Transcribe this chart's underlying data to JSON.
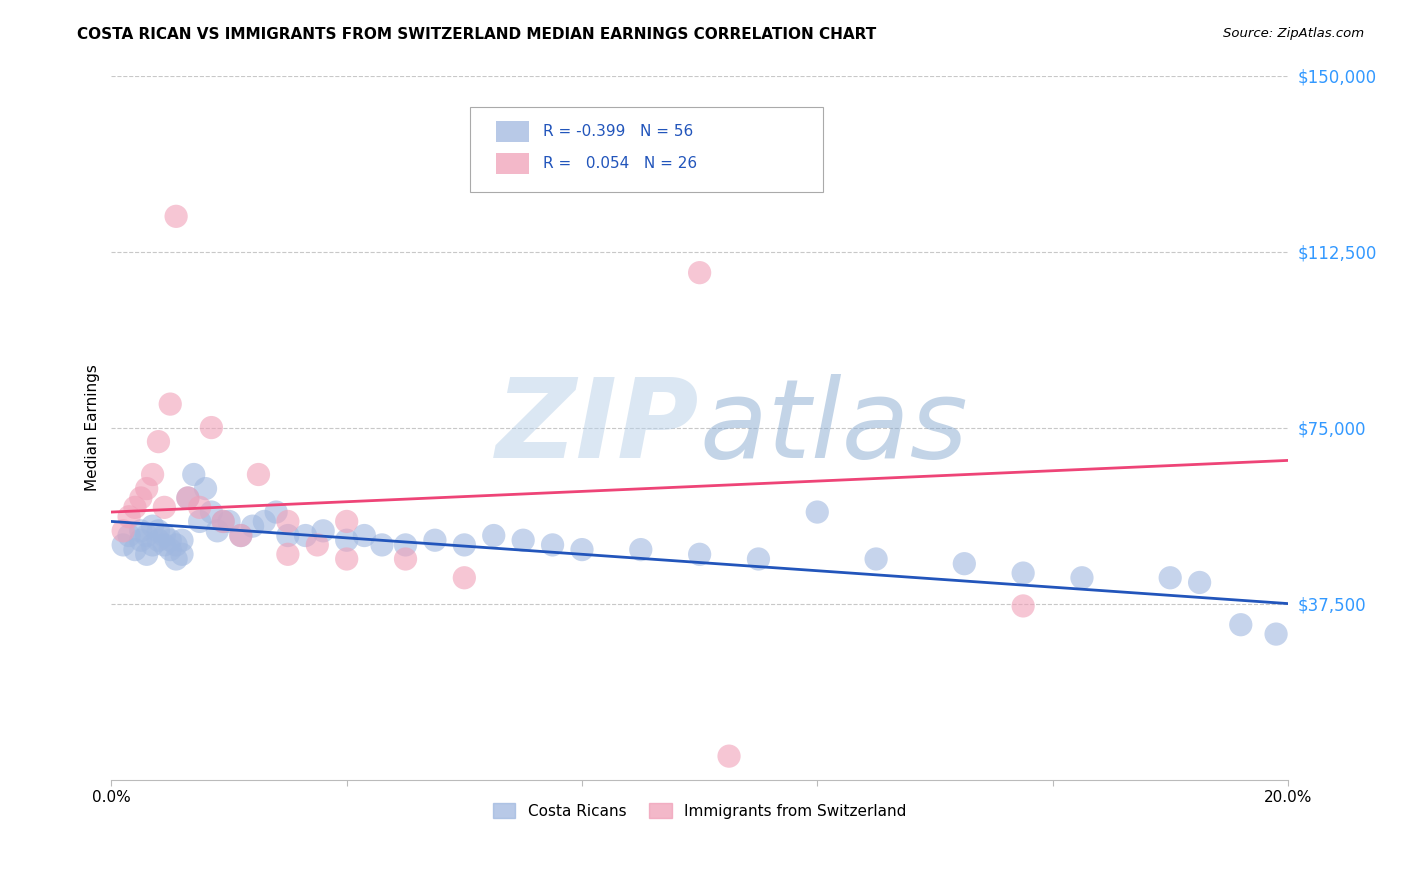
{
  "title": "COSTA RICAN VS IMMIGRANTS FROM SWITZERLAND MEDIAN EARNINGS CORRELATION CHART",
  "source": "Source: ZipAtlas.com",
  "ylabel": "Median Earnings",
  "xlim": [
    0,
    0.2
  ],
  "ylim": [
    0,
    150000
  ],
  "yticks": [
    37500,
    75000,
    112500,
    150000
  ],
  "ytick_labels": [
    "$37,500",
    "$75,000",
    "$112,500",
    "$150,000"
  ],
  "xticks": [
    0.0,
    0.04,
    0.08,
    0.12,
    0.16,
    0.2
  ],
  "xtick_labels": [
    "0.0%",
    "",
    "",
    "",
    "",
    "20.0%"
  ],
  "background_color": "#ffffff",
  "grid_color": "#c8c8c8",
  "watermark_zip": "ZIP",
  "watermark_atlas": "atlas",
  "blue_color": "#a0b8e0",
  "pink_color": "#f0a0b8",
  "blue_line_color": "#2255bb",
  "pink_line_color": "#ee4477",
  "legend_blue_R": "-0.399",
  "legend_blue_N": "56",
  "legend_pink_R": " 0.054",
  "legend_pink_N": "26",
  "blue_scatter_x": [
    0.002,
    0.003,
    0.004,
    0.005,
    0.005,
    0.006,
    0.006,
    0.007,
    0.007,
    0.008,
    0.008,
    0.009,
    0.009,
    0.01,
    0.01,
    0.011,
    0.011,
    0.012,
    0.012,
    0.013,
    0.014,
    0.015,
    0.016,
    0.017,
    0.018,
    0.019,
    0.02,
    0.022,
    0.024,
    0.026,
    0.028,
    0.03,
    0.033,
    0.036,
    0.04,
    0.043,
    0.046,
    0.05,
    0.055,
    0.06,
    0.065,
    0.07,
    0.075,
    0.08,
    0.09,
    0.1,
    0.11,
    0.12,
    0.13,
    0.145,
    0.155,
    0.165,
    0.18,
    0.185,
    0.192,
    0.198
  ],
  "blue_scatter_y": [
    50000,
    52000,
    49000,
    51000,
    53000,
    48000,
    52000,
    50000,
    54000,
    51000,
    53000,
    50000,
    52000,
    49000,
    51000,
    47000,
    50000,
    48000,
    51000,
    60000,
    65000,
    55000,
    62000,
    57000,
    53000,
    55000,
    55000,
    52000,
    54000,
    55000,
    57000,
    52000,
    52000,
    53000,
    51000,
    52000,
    50000,
    50000,
    51000,
    50000,
    52000,
    51000,
    50000,
    49000,
    49000,
    48000,
    47000,
    57000,
    47000,
    46000,
    44000,
    43000,
    43000,
    42000,
    33000,
    31000
  ],
  "pink_scatter_x": [
    0.002,
    0.003,
    0.004,
    0.005,
    0.006,
    0.007,
    0.008,
    0.009,
    0.01,
    0.011,
    0.013,
    0.015,
    0.017,
    0.019,
    0.022,
    0.025,
    0.03,
    0.035,
    0.04,
    0.05,
    0.06,
    0.03,
    0.04,
    0.1,
    0.155,
    0.105
  ],
  "pink_scatter_y": [
    53000,
    56000,
    58000,
    60000,
    62000,
    65000,
    72000,
    58000,
    80000,
    120000,
    60000,
    58000,
    75000,
    55000,
    52000,
    65000,
    55000,
    50000,
    55000,
    47000,
    43000,
    48000,
    47000,
    108000,
    37000,
    5000
  ],
  "blue_line_y0": 55000,
  "blue_line_y1": 37500,
  "pink_line_y0": 57000,
  "pink_line_y1": 68000
}
